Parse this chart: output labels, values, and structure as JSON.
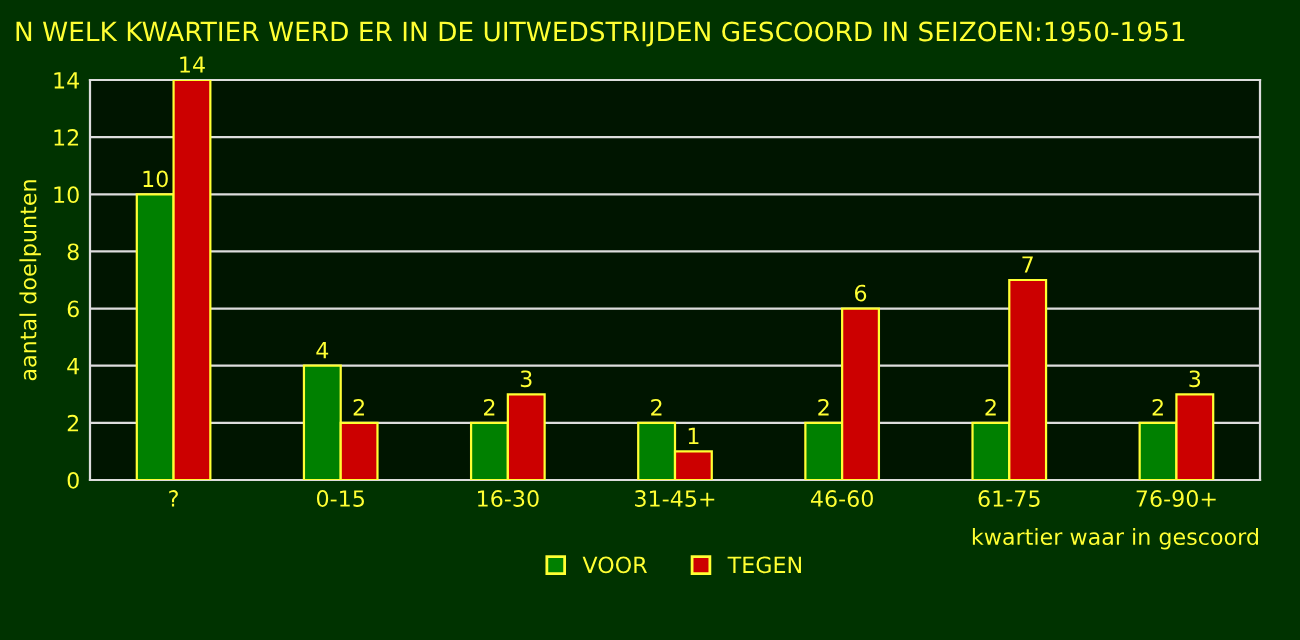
{
  "chart_data": {
    "type": "bar",
    "title": "N WELK KWARTIER WERD ER IN DE UITWEDSTRIJDEN GESCOORD IN SEIZOEN:1950-1951",
    "xlabel": "kwartier waar in gescoord",
    "ylabel": "aantal doelpunten",
    "categories": [
      "?",
      "0-15",
      "16-30",
      "31-45+",
      "46-60",
      "61-75",
      "76-90+"
    ],
    "series": [
      {
        "name": "VOOR",
        "color": "#008000",
        "values": [
          10,
          4,
          2,
          2,
          2,
          2,
          2
        ]
      },
      {
        "name": "TEGEN",
        "color": "#cc0000",
        "values": [
          14,
          2,
          3,
          1,
          6,
          7,
          3
        ]
      }
    ],
    "ylim": [
      0,
      14
    ],
    "yticks": [
      0,
      2,
      4,
      6,
      8,
      10,
      12,
      14
    ],
    "grid": "y",
    "legend": "bottom",
    "data_labels": true
  }
}
